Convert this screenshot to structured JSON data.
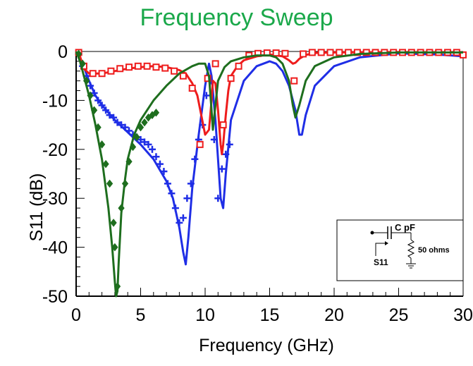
{
  "chart_data": {
    "type": "line",
    "title": "Frequency Sweep",
    "xlabel": "Frequency (GHz)",
    "ylabel": "S11 (dB)",
    "xlim": [
      0,
      30
    ],
    "ylim": [
      -50,
      0
    ],
    "x_ticks": [
      0,
      5,
      10,
      15,
      20,
      25,
      30
    ],
    "y_ticks": [
      0,
      -10,
      -20,
      -30,
      -40,
      -50
    ],
    "grid": false,
    "colors": {
      "title": "#1aa84a",
      "blue": "#1f2ee6",
      "red": "#ee1c1c",
      "green": "#1e6e1e"
    },
    "series": [
      {
        "color": "blue",
        "kind": "line",
        "x": [
          0,
          0.5,
          1,
          1.5,
          2,
          3,
          4,
          5,
          6,
          7,
          7.5,
          8,
          8.3,
          8.5,
          8.7,
          9,
          9.5,
          10,
          10.3,
          10.5,
          10.8,
          11,
          11.2,
          11.4,
          11.6,
          12,
          13,
          14,
          15,
          15.5,
          16,
          16.5,
          17,
          17.3,
          17.5,
          17.8,
          18.5,
          20,
          22,
          25,
          28,
          30
        ],
        "y": [
          0,
          -2.5,
          -6,
          -9,
          -11,
          -14,
          -16.5,
          -19,
          -22,
          -26.5,
          -30,
          -36,
          -41,
          -43.5,
          -38,
          -28,
          -17,
          -7,
          -2.5,
          -5,
          -14,
          -22,
          -30,
          -32,
          -25,
          -14,
          -6,
          -3,
          -2,
          -2.5,
          -4,
          -7,
          -12,
          -17,
          -17,
          -13,
          -7,
          -3,
          -1.2,
          -0.4,
          -0.6,
          -1
        ]
      },
      {
        "color": "blue",
        "kind": "markers",
        "marker": "plus",
        "x": [
          0.2,
          0.5,
          0.8,
          1.1,
          1.4,
          1.7,
          2.0,
          2.3,
          2.6,
          2.9,
          3.2,
          3.5,
          3.8,
          4.1,
          4.4,
          4.7,
          5.0,
          5.3,
          5.6,
          5.9,
          6.2,
          6.5,
          6.8,
          7.1,
          7.4,
          7.7,
          8.0,
          8.3,
          8.6,
          8.9,
          9.2,
          9.5,
          9.8,
          10.1,
          10.4,
          10.7,
          11.0,
          11.3,
          11.6,
          11.9
        ],
        "y": [
          -0.5,
          -3,
          -5,
          -7,
          -8.5,
          -10,
          -11,
          -12,
          -13,
          -13.5,
          -14.5,
          -15,
          -15.5,
          -16.2,
          -17,
          -17.5,
          -18,
          -18.5,
          -19,
          -20,
          -21.5,
          -23,
          -24.5,
          -27,
          -29,
          -32,
          -35,
          -34,
          -30,
          -27,
          -22,
          -18,
          -15,
          -9,
          -6,
          -18,
          -30,
          -24,
          -21,
          -19
        ]
      },
      {
        "color": "red",
        "kind": "line",
        "x": [
          0,
          0.3,
          0.6,
          1,
          2,
          3,
          4,
          5,
          6,
          7,
          8,
          8.5,
          9,
          9.4,
          9.7,
          10,
          10.3,
          10.5,
          10.6,
          10.8,
          11,
          11.2,
          11.3,
          11.4,
          11.6,
          11.8,
          12,
          12.5,
          13,
          14,
          15,
          16,
          16.5,
          16.8,
          17,
          17.3,
          17.8,
          18.5,
          20,
          25,
          30
        ],
        "y": [
          0,
          -1,
          -3.5,
          -4.5,
          -4.5,
          -4,
          -3.5,
          -3.2,
          -3,
          -3.2,
          -3.8,
          -4.5,
          -6.5,
          -9,
          -13,
          -17,
          -16,
          -10,
          -6,
          -6.5,
          -12,
          -19,
          -21,
          -19,
          -13,
          -8,
          -5,
          -3,
          -1.8,
          -1,
          -0.6,
          -1,
          -1.8,
          -2.5,
          -2.3,
          -1.5,
          -0.7,
          -0.3,
          -0.2,
          -0.1,
          -0.2
        ]
      },
      {
        "color": "red",
        "kind": "markers",
        "marker": "square",
        "x": [
          0.2,
          0.6,
          1.3,
          2.0,
          2.7,
          3.4,
          4.1,
          4.8,
          5.5,
          6.2,
          6.9,
          7.6,
          8.3,
          9.0,
          9.6,
          10.2,
          10.8,
          11.4,
          12.0,
          12.6,
          13.4,
          14.1,
          14.8,
          15.5,
          16.2,
          16.9,
          17.6,
          18.3,
          19.0,
          19.7,
          20.4,
          21.1,
          21.8,
          22.5,
          23.2,
          23.9,
          24.6,
          25.3,
          26.0,
          26.7,
          27.4,
          28.1,
          28.8,
          29.5,
          30
        ],
        "y": [
          -0.2,
          -3,
          -4.5,
          -4.5,
          -4,
          -3.5,
          -3.2,
          -3,
          -3,
          -3.2,
          -3.4,
          -4,
          -5,
          -7.5,
          -19,
          -5.5,
          -2.5,
          -15,
          -5.5,
          -3,
          -0.8,
          -0.4,
          -0.3,
          -0.3,
          -0.4,
          -6,
          -0.5,
          -0.2,
          -0.2,
          -0.2,
          -0.2,
          -0.2,
          -0.2,
          -0.2,
          -0.2,
          -0.2,
          -0.2,
          -0.2,
          -0.2,
          -0.2,
          -0.2,
          -0.2,
          -0.2,
          -0.2,
          -0.7
        ]
      },
      {
        "color": "green",
        "kind": "line",
        "x": [
          0,
          0.3,
          0.6,
          1,
          1.5,
          2,
          2.5,
          2.8,
          3.0,
          3.1,
          3.2,
          3.3,
          3.5,
          3.8,
          4,
          4.5,
          5,
          6,
          7,
          8,
          9,
          9.5,
          10,
          10.3,
          10.5,
          10.6,
          10.8,
          11,
          11.5,
          12,
          13,
          14,
          15,
          15.5,
          16,
          16.5,
          16.8,
          17,
          17.3,
          17.8,
          18.5,
          20,
          22,
          25,
          30
        ],
        "y": [
          0,
          -2,
          -5,
          -9,
          -15,
          -22,
          -32,
          -40,
          -47,
          -50,
          -49,
          -43,
          -33,
          -26,
          -22,
          -17,
          -14,
          -10,
          -7,
          -4.5,
          -3,
          -2.5,
          -2.5,
          -5,
          -12,
          -16,
          -11,
          -6,
          -3.2,
          -2,
          -1.2,
          -0.8,
          -0.8,
          -1.2,
          -2.5,
          -6,
          -11,
          -13.5,
          -11,
          -6,
          -3,
          -1.2,
          -0.5,
          -0.2,
          -0.2
        ]
      },
      {
        "color": "green",
        "kind": "markers",
        "marker": "diamond",
        "x": [
          0.2,
          0.5,
          0.8,
          1.1,
          1.4,
          1.7,
          2.0,
          2.3,
          2.6,
          2.9,
          3.0,
          3.2,
          3.5,
          3.8,
          4.1,
          4.4,
          4.7,
          5.0,
          5.3,
          5.6,
          5.9,
          6.2
        ],
        "y": [
          -0.5,
          -2.5,
          -6,
          -9,
          -12,
          -15.5,
          -19,
          -23,
          -27,
          -35,
          -40,
          -48,
          -32,
          -27,
          -22.5,
          -19.5,
          -17.5,
          -15.5,
          -14.5,
          -13.5,
          -13,
          -12.5
        ]
      }
    ],
    "inset": {
      "capacitor_label": "C pF",
      "resistor_label": "50 ohms",
      "port_label": "S11"
    }
  }
}
